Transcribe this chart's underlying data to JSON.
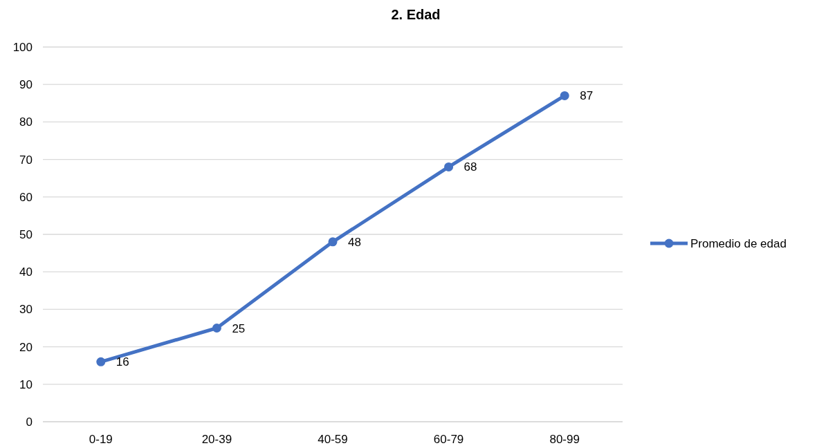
{
  "chart_data": {
    "type": "line",
    "title": "2. Edad",
    "categories": [
      "0-19",
      "20-39",
      "40-59",
      "60-79",
      "80-99"
    ],
    "series": [
      {
        "name": "Promedio de edad",
        "color": "#4472c4",
        "values": [
          16,
          25,
          48,
          68,
          87
        ]
      }
    ],
    "ylim": [
      0,
      100
    ],
    "yticks": [
      0,
      10,
      20,
      30,
      40,
      50,
      60,
      70,
      80,
      90,
      100
    ],
    "grid": "y",
    "legend": "right",
    "marker": "circle",
    "data_labels": true
  }
}
